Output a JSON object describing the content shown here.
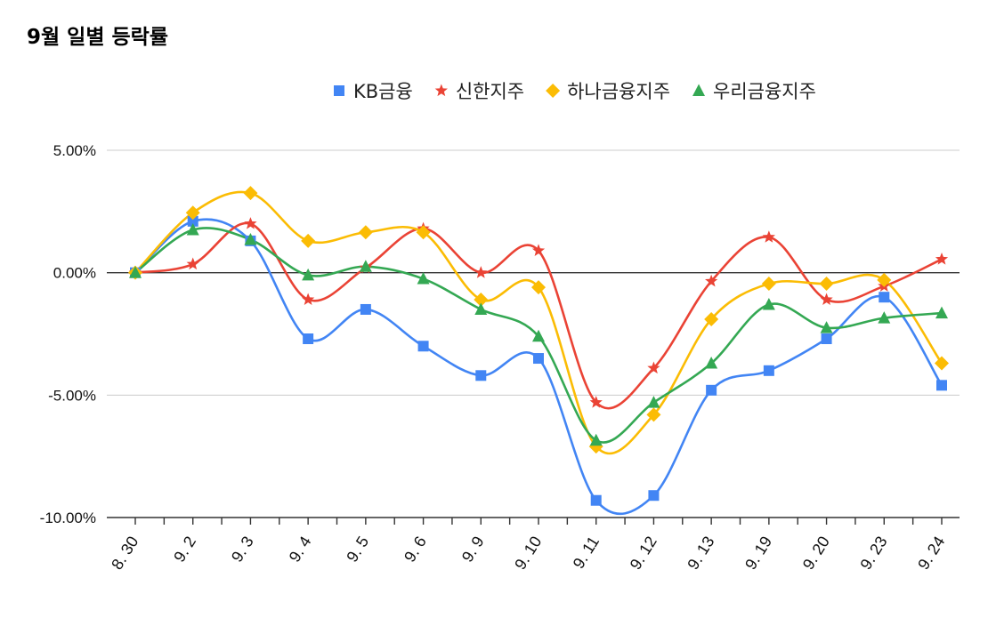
{
  "chart_data": {
    "type": "line",
    "title": "9월 일별 등락률",
    "xlabel": "",
    "ylabel": "",
    "categories": [
      "8. 30",
      "9. 2",
      "9. 3",
      "9. 4",
      "9. 5",
      "9. 6",
      "9. 9",
      "9. 10",
      "9. 11",
      "9. 12",
      "9. 13",
      "9. 19",
      "9. 20",
      "9. 23",
      "9. 24"
    ],
    "y_ticks": [
      "5.00%",
      "0.00%",
      "-5.00%",
      "-10.00%"
    ],
    "y_tick_values": [
      5,
      0,
      -5,
      -10
    ],
    "ylim": [
      -10,
      5
    ],
    "y_unit": "%",
    "grid": true,
    "smooth": true,
    "legend_position": "top-right",
    "series": [
      {
        "name": "KB금융",
        "color": "#4285f4",
        "marker": "square",
        "values": [
          0.0,
          2.1,
          1.3,
          -2.7,
          -1.5,
          -3.0,
          -4.2,
          -3.5,
          -9.3,
          -9.1,
          -4.8,
          -4.0,
          -2.7,
          -1.0,
          -4.6
        ]
      },
      {
        "name": "신한지주",
        "color": "#ea4335",
        "marker": "star",
        "values": [
          0.0,
          0.35,
          2.0,
          -1.1,
          0.2,
          1.8,
          0.0,
          0.9,
          -5.3,
          -3.9,
          -0.35,
          1.45,
          -1.1,
          -0.55,
          0.55
        ]
      },
      {
        "name": "하나금융지주",
        "color": "#fbbc04",
        "marker": "diamond",
        "values": [
          0.0,
          2.45,
          3.25,
          1.3,
          1.65,
          1.65,
          -1.1,
          -0.6,
          -7.1,
          -5.8,
          -1.9,
          -0.45,
          -0.45,
          -0.3,
          -3.7
        ]
      },
      {
        "name": "우리금융지주",
        "color": "#34a853",
        "marker": "triangle",
        "values": [
          0.0,
          1.75,
          1.35,
          -0.1,
          0.25,
          -0.25,
          -1.5,
          -2.6,
          -6.85,
          -5.3,
          -3.7,
          -1.3,
          -2.25,
          -1.85,
          -1.65
        ]
      }
    ]
  }
}
